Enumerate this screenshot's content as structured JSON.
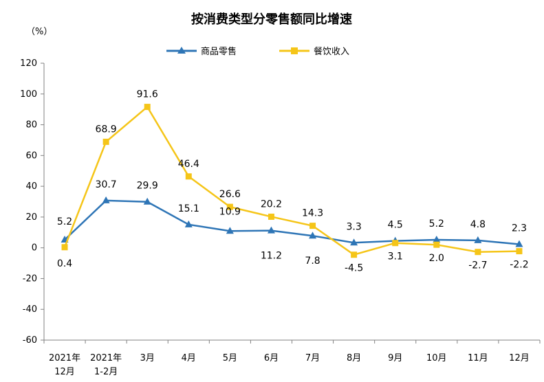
{
  "chart_data": {
    "type": "line",
    "title": "按消费类型分零售额同比增速",
    "unit_label": "（%）",
    "categories": [
      [
        "2021年",
        "12月"
      ],
      [
        "2021年",
        "1-2月"
      ],
      [
        "3月"
      ],
      [
        "4月"
      ],
      [
        "5月"
      ],
      [
        "6月"
      ],
      [
        "7月"
      ],
      [
        "8月"
      ],
      [
        "9月"
      ],
      [
        "10月"
      ],
      [
        "11月"
      ],
      [
        "12月"
      ]
    ],
    "ylim": [
      -60,
      120
    ],
    "yticks": [
      -60,
      -40,
      -20,
      0,
      20,
      40,
      60,
      80,
      100,
      120
    ],
    "legend_position": "top-center",
    "grid": false,
    "series": [
      {
        "name": "商品零售",
        "color": "#2e75b6",
        "marker": "triangle",
        "values": [
          5.2,
          30.7,
          29.9,
          15.1,
          10.9,
          11.2,
          7.8,
          3.3,
          4.5,
          5.2,
          4.8,
          2.3
        ],
        "labels": [
          "5.2",
          "30.7",
          "29.9",
          "15.1",
          "10.9",
          "11.2",
          "7.8",
          "3.3",
          "4.5",
          "5.2",
          "4.8",
          "2.3"
        ]
      },
      {
        "name": "餐饮收入",
        "color": "#f5c518",
        "marker": "square",
        "values": [
          0.4,
          68.9,
          91.6,
          46.4,
          26.6,
          20.2,
          14.3,
          -4.5,
          3.1,
          2.0,
          -2.7,
          -2.2
        ],
        "labels": [
          "0.4",
          "68.9",
          "91.6",
          "46.4",
          "26.6",
          "20.2",
          "14.3",
          "-4.5",
          "3.1",
          "2.0",
          "-2.7",
          "-2.2"
        ]
      }
    ]
  }
}
